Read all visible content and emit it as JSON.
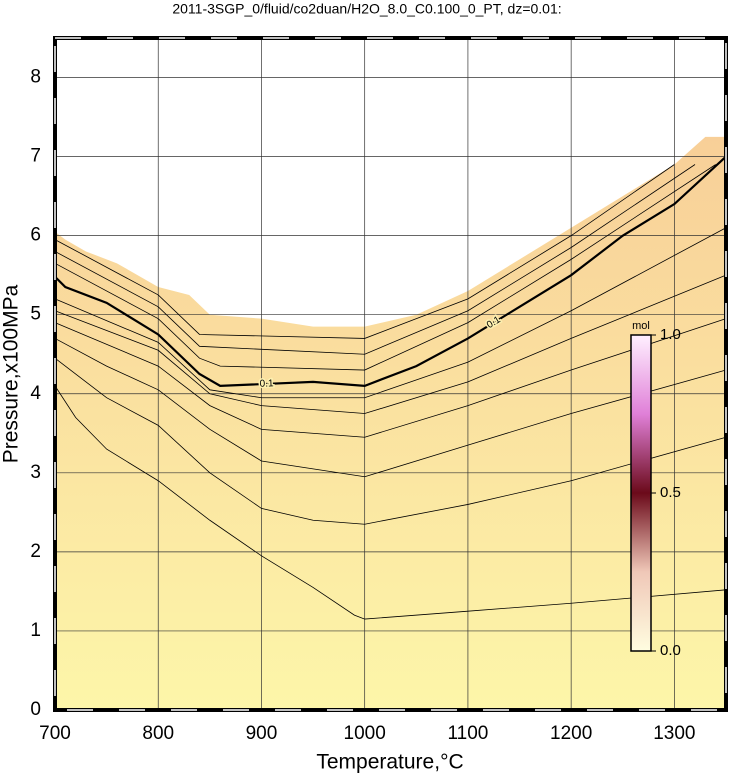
{
  "chart_data": {
    "type": "contour",
    "title": "2011-3SGP_0/fluid/co2duan/H2O_8.0_C0.100_0_PT, dz=0.01:",
    "xlabel": "Temperature,°C",
    "ylabel": "Pressure,x100MPa",
    "xlim": [
      700,
      1350
    ],
    "ylim": [
      0,
      8.5
    ],
    "xticks": [
      700,
      800,
      900,
      1000,
      1100,
      1200,
      1300
    ],
    "yticks": [
      0,
      1,
      2,
      3,
      4,
      5,
      6,
      7,
      8
    ],
    "grid": true,
    "region": {
      "colors": [
        "#fdf6a9",
        "#f8cf98"
      ],
      "x": [
        700,
        710,
        730,
        760,
        800,
        830,
        850,
        900,
        950,
        1000,
        1050,
        1100,
        1150,
        1200,
        1250,
        1300,
        1330,
        1350
      ],
      "y": [
        6.05,
        5.95,
        5.8,
        5.65,
        5.35,
        5.25,
        5.0,
        4.95,
        4.85,
        4.85,
        5.0,
        5.3,
        5.7,
        6.1,
        6.5,
        6.9,
        7.25,
        7.25
      ]
    },
    "contours": [
      {
        "x": [
          700,
          720,
          750,
          800,
          850,
          900,
          950,
          990,
          1000,
          1100,
          1200,
          1350
        ],
        "y": [
          4.1,
          3.7,
          3.3,
          2.9,
          2.4,
          1.95,
          1.55,
          1.2,
          1.15,
          1.25,
          1.35,
          1.52
        ]
      },
      {
        "x": [
          700,
          750,
          800,
          850,
          900,
          950,
          1000,
          1100,
          1200,
          1350
        ],
        "y": [
          4.45,
          3.95,
          3.6,
          3.0,
          2.55,
          2.4,
          2.35,
          2.6,
          2.9,
          3.45
        ]
      },
      {
        "x": [
          700,
          750,
          800,
          850,
          900,
          1000,
          1100,
          1200,
          1350
        ],
        "y": [
          4.7,
          4.35,
          4.05,
          3.55,
          3.15,
          2.95,
          3.35,
          3.75,
          4.3
        ]
      },
      {
        "x": [
          700,
          800,
          850,
          900,
          1000,
          1100,
          1200,
          1350
        ],
        "y": [
          4.9,
          4.35,
          3.85,
          3.55,
          3.45,
          3.85,
          4.3,
          4.95
        ]
      },
      {
        "x": [
          700,
          800,
          850,
          900,
          1000,
          1100,
          1200,
          1350
        ],
        "y": [
          5.05,
          4.55,
          4.0,
          3.85,
          3.75,
          4.15,
          4.7,
          5.5
        ]
      },
      {
        "x": [
          700,
          800,
          850,
          900,
          1000,
          1100,
          1200,
          1350
        ],
        "y": [
          5.2,
          4.65,
          4.05,
          3.95,
          3.95,
          4.4,
          5.05,
          6.1
        ]
      },
      {
        "level": 0.1,
        "x": [
          700,
          710,
          750,
          800,
          840,
          860,
          950,
          1000,
          1050,
          1100,
          1150,
          1200,
          1250,
          1300,
          1350
        ],
        "y": [
          5.48,
          5.35,
          5.15,
          4.75,
          4.25,
          4.1,
          4.15,
          4.1,
          4.35,
          4.7,
          5.1,
          5.5,
          6.0,
          6.4,
          7.0
        ]
      },
      {
        "x": [
          700,
          800,
          840,
          860,
          1000,
          1100,
          1200,
          1340
        ],
        "y": [
          5.65,
          4.95,
          4.45,
          4.35,
          4.3,
          4.9,
          5.7,
          6.9
        ]
      },
      {
        "x": [
          700,
          800,
          840,
          1000,
          1100,
          1200,
          1320
        ],
        "y": [
          5.8,
          5.1,
          4.6,
          4.5,
          5.05,
          5.85,
          6.9
        ]
      },
      {
        "x": [
          700,
          800,
          840,
          1000,
          1100,
          1200,
          1300
        ],
        "y": [
          5.95,
          5.25,
          4.75,
          4.7,
          5.2,
          6.0,
          6.9
        ]
      }
    ],
    "colorbar": {
      "label": "mol",
      "lim": [
        0,
        1
      ],
      "ticks": [
        {
          "value": 0,
          "label": "0.0"
        },
        {
          "value": 0.5,
          "label": "0.5"
        },
        {
          "value": 1,
          "label": "1.0"
        }
      ],
      "colors": [
        "#fffde0",
        "#f0c8b8",
        "#6b0a1a",
        "#e080d8",
        "#fff0ff"
      ]
    }
  }
}
